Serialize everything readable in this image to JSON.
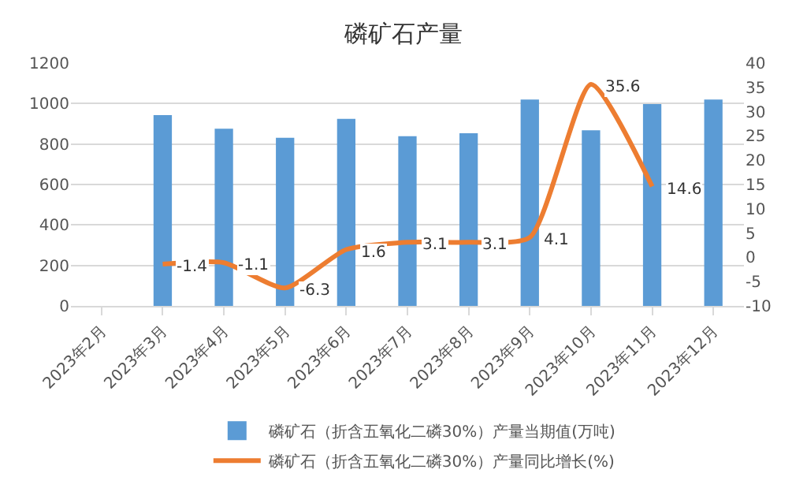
{
  "chart_data": {
    "type": "bar",
    "title": "磷矿石产量",
    "categories": [
      "2023年2月",
      "2023年3月",
      "2023年4月",
      "2023年5月",
      "2023年6月",
      "2023年7月",
      "2023年8月",
      "2023年9月",
      "2023年10月",
      "2023年11月",
      "2023年12月"
    ],
    "series": [
      {
        "name": "磷矿石（折含五氧化二磷30%）产量当期值(万吨)",
        "color": "#5b9bd5",
        "values": [
          null,
          943,
          876,
          831,
          924,
          839,
          853,
          1020,
          868,
          997,
          1020
        ]
      },
      {
        "name": "磷矿石（折含五氧化二磷30%）产量同比增长(%)",
        "type": "line",
        "axis": "y2",
        "color": "#ed7d31",
        "values": [
          null,
          -1.4,
          -1.1,
          -6.3,
          1.6,
          3.1,
          3.1,
          4.1,
          35.6,
          14.6,
          null
        ],
        "value_labels": [
          null,
          "-1.4",
          "-1.1",
          "-6.3",
          "1.6",
          "3.1",
          "3.1",
          "4.1",
          "35.6",
          "14.6",
          null
        ]
      }
    ],
    "ylim": [
      0,
      1200
    ],
    "yticks": [
      0,
      200,
      400,
      600,
      800,
      1000,
      1200
    ],
    "y2lim": [
      -10,
      40
    ],
    "y2ticks": [
      -10,
      -5,
      0,
      5,
      10,
      15,
      20,
      25,
      30,
      35,
      40
    ],
    "grid": "y",
    "legend": "bottom",
    "marker": "none",
    "line_style": "solid"
  }
}
